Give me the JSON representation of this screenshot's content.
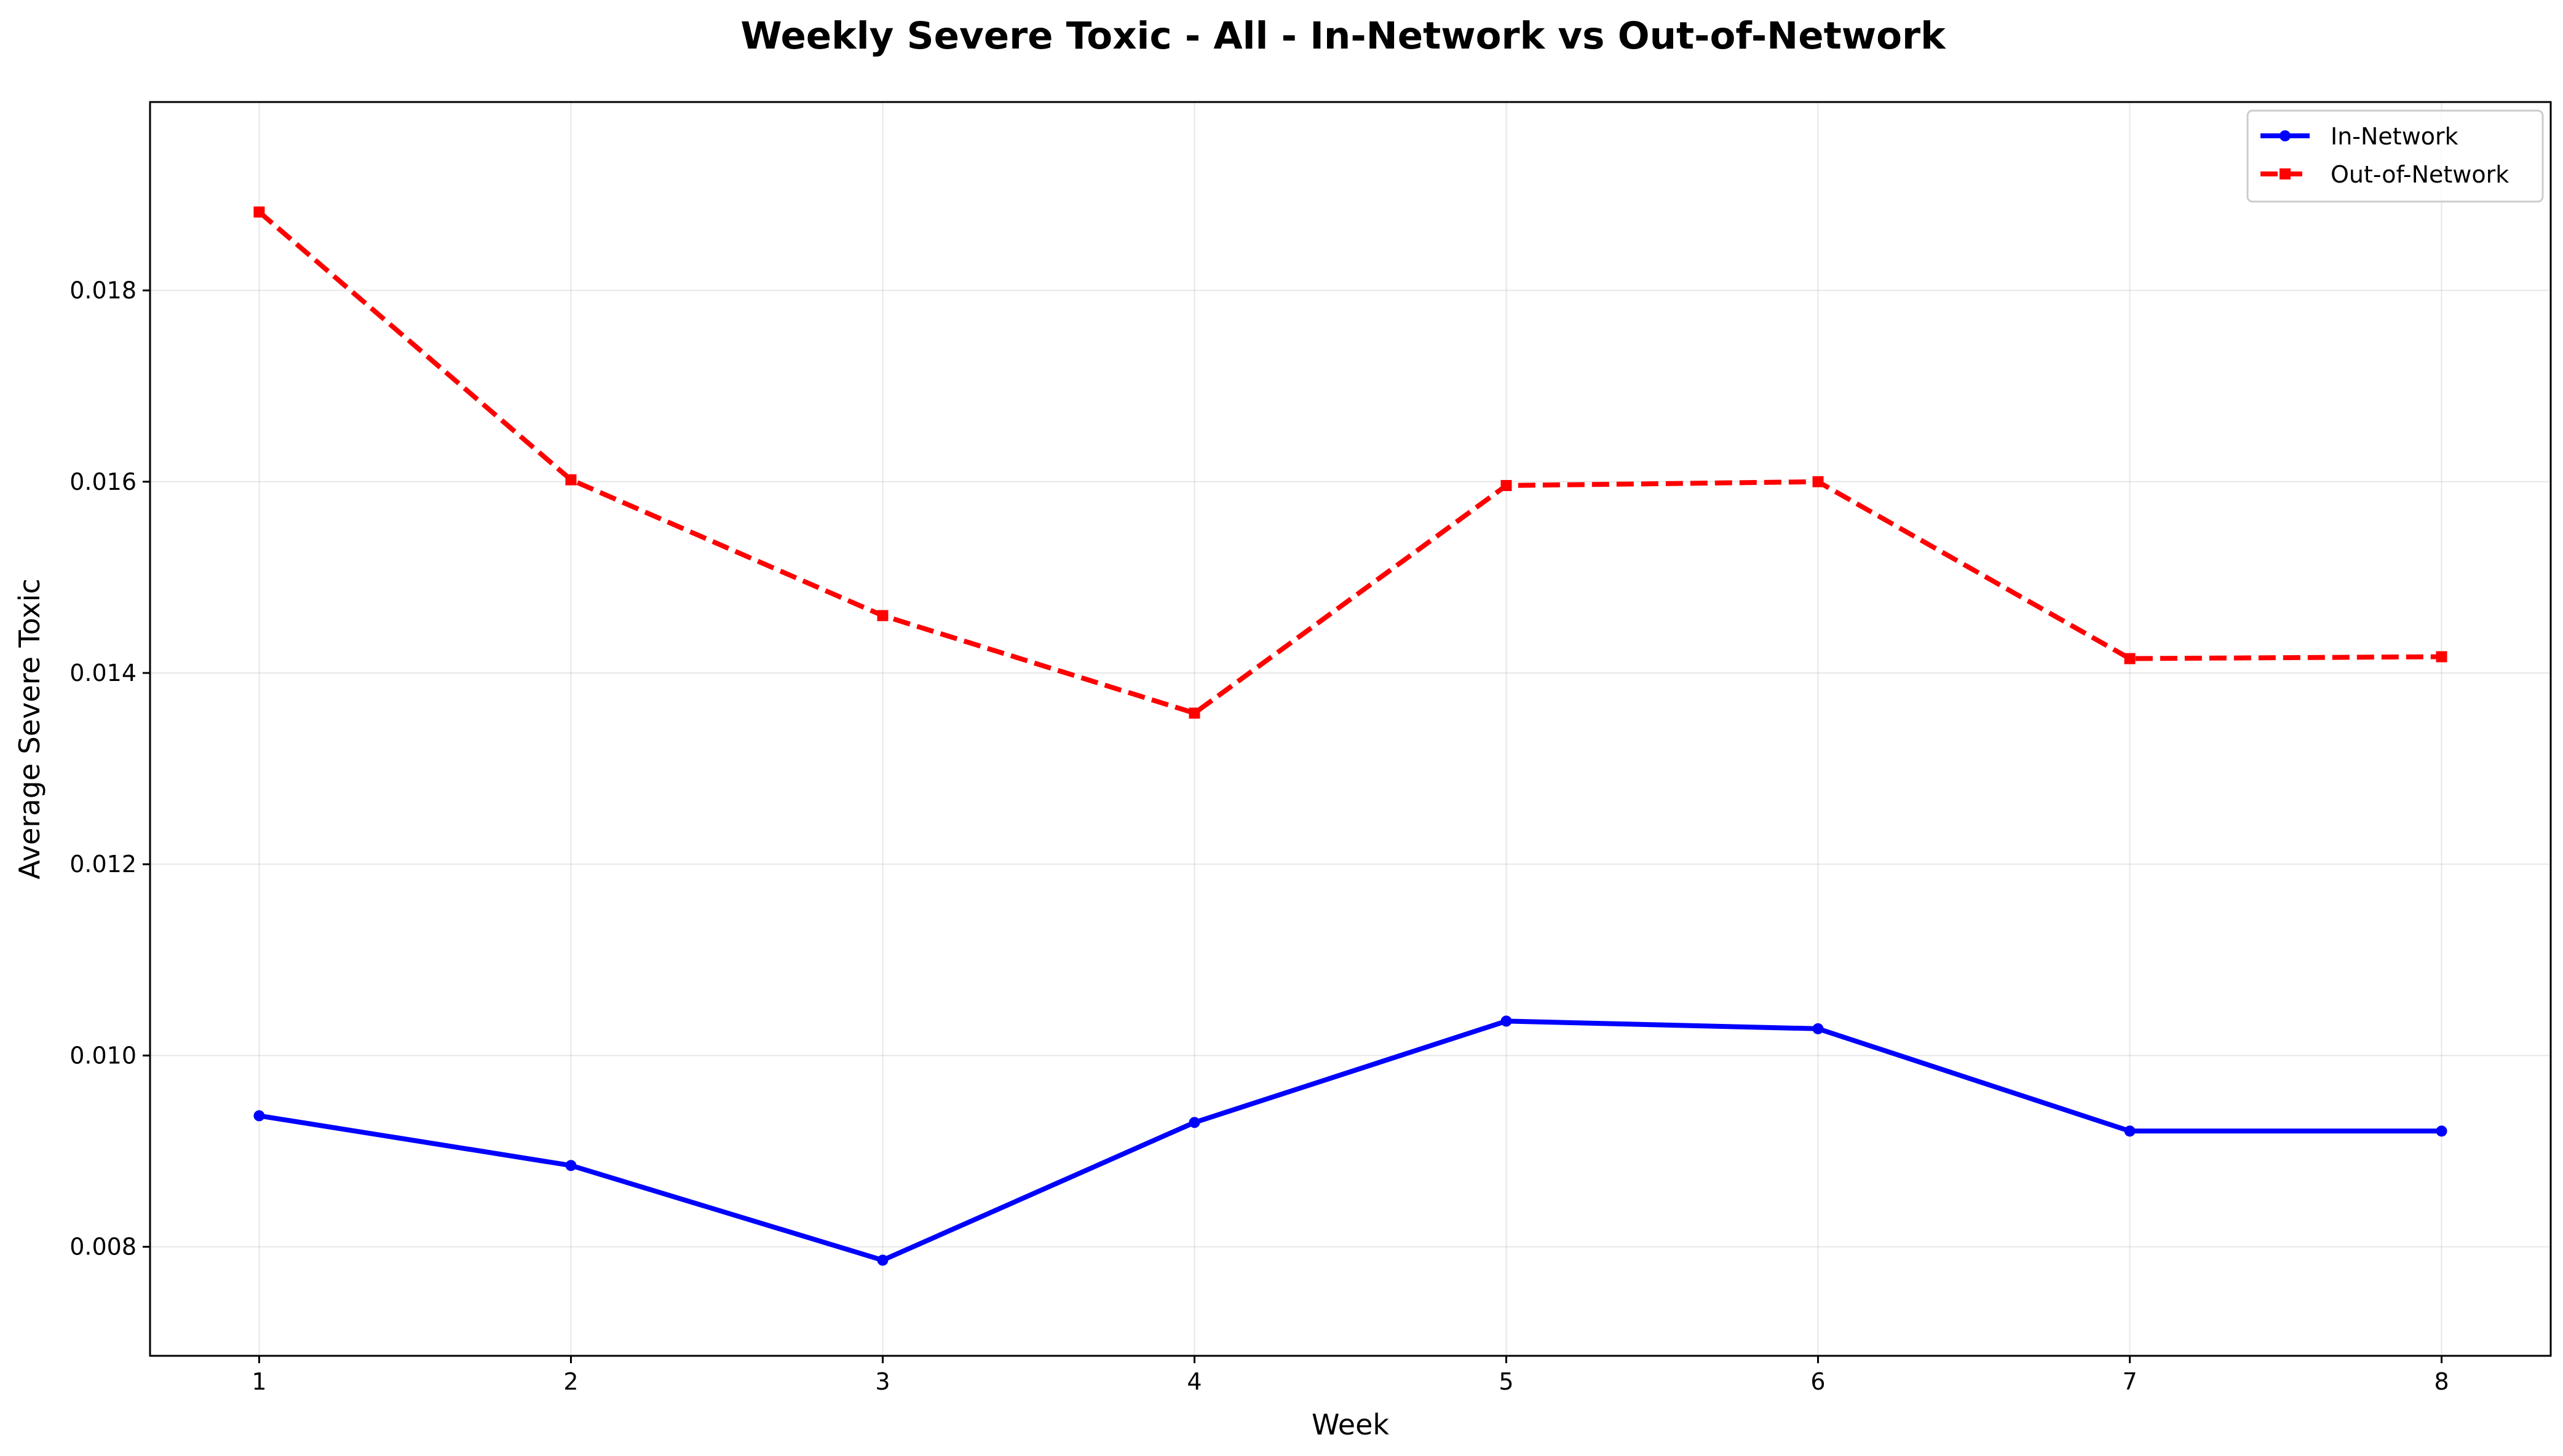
{
  "chart_data": {
    "type": "line",
    "title": "Weekly Severe Toxic - All - In-Network vs Out-of-Network",
    "xlabel": "Week",
    "ylabel": "Average Severe Toxic",
    "x": [
      1,
      2,
      3,
      4,
      5,
      6,
      7,
      8
    ],
    "xlim": [
      0.65,
      8.35
    ],
    "ylim": [
      0.00686,
      0.01997
    ],
    "xticks": [
      1,
      2,
      3,
      4,
      5,
      6,
      7,
      8
    ],
    "yticks": [
      0.008,
      0.01,
      0.012,
      0.014,
      0.016,
      0.018
    ],
    "ytick_labels": [
      "0.008",
      "0.010",
      "0.012",
      "0.014",
      "0.016",
      "0.018"
    ],
    "grid": true,
    "legend_position": "top-right",
    "series": [
      {
        "name": "In-Network",
        "color": "#0000ff",
        "line_style": "solid",
        "marker": "circle",
        "values": [
          0.00937,
          0.00885,
          0.00786,
          0.0093,
          0.01036,
          0.01028,
          0.00921,
          0.00921
        ]
      },
      {
        "name": "Out-of-Network",
        "color": "#ff0000",
        "line_style": "dashed",
        "marker": "square",
        "values": [
          0.01882,
          0.01602,
          0.0146,
          0.01358,
          0.01596,
          0.016,
          0.01415,
          0.01417
        ]
      }
    ]
  }
}
